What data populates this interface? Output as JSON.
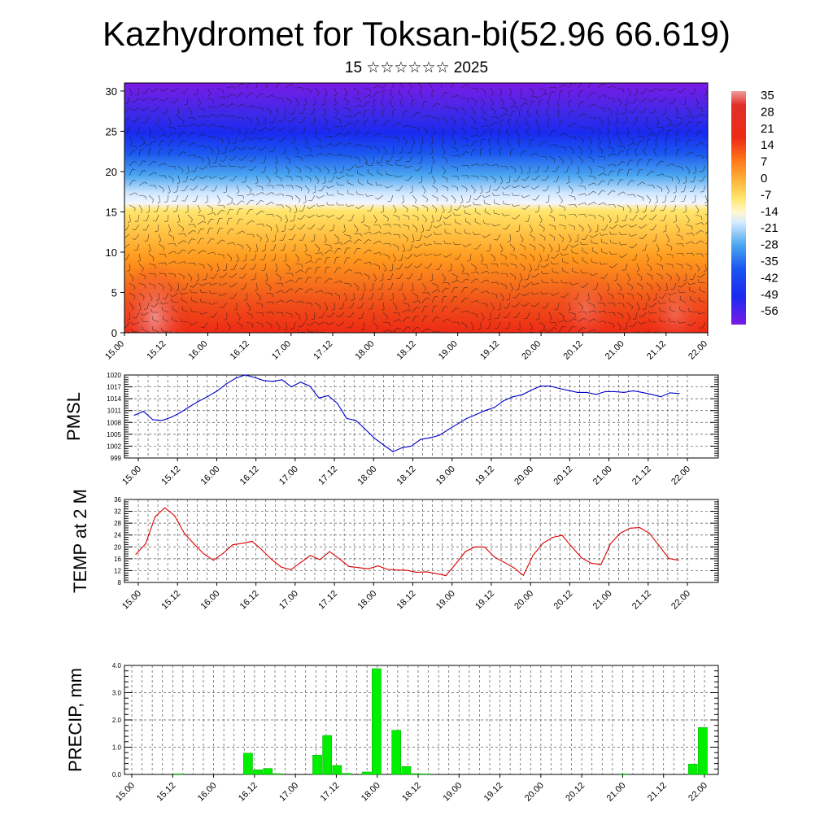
{
  "page": {
    "title": "Kazhydromet for Toksan-bi(52.96 66.619)",
    "subtitle": "15 ☆☆☆☆☆☆ 2025"
  },
  "chart_data": [
    {
      "type": "heatmap",
      "name": "cross-section",
      "x_tick_labels": [
        "15.00",
        "15.12",
        "16.00",
        "16.12",
        "17.00",
        "17.12",
        "18.00",
        "18.12",
        "19.00",
        "19.12",
        "20.00",
        "20.12",
        "21.00",
        "21.12",
        "22.00"
      ],
      "yticks": [
        0,
        5,
        10,
        15,
        20,
        25,
        30
      ],
      "ylim": [
        0,
        31
      ],
      "colorbar_labels": [
        "35",
        "28",
        "21",
        "14",
        "7",
        "0",
        "-7",
        "-14",
        "-21",
        "-28",
        "-35",
        "-42",
        "-49",
        "-56"
      ],
      "colors": {
        "top": "#7a1be6",
        "blue": "#1a2af0",
        "light_blue": "#4aa6f0",
        "pale": "#d8ecff",
        "yellow": "#ffe66e",
        "orange": "#ff9a1e",
        "red": "#ee2a14",
        "pink": "#f29a9a"
      }
    },
    {
      "type": "line",
      "name": "PMSL",
      "ylabel": "PMSL",
      "yticks": [
        999,
        1002,
        1005,
        1008,
        1011,
        1014,
        1017,
        1020
      ],
      "ylim": [
        999,
        1020
      ],
      "x_tick_labels": [
        "15.00",
        "15.12",
        "16.00",
        "16.12",
        "17.00",
        "17.12",
        "18.00",
        "18.12",
        "19.00",
        "19.12",
        "20.00",
        "20.12",
        "21.00",
        "21.12",
        "22.00"
      ],
      "color": "#0000cc",
      "values": [
        1009.8,
        1010.8,
        1008.7,
        1008.5,
        1009.3,
        1010.5,
        1012.0,
        1013.4,
        1014.6,
        1016.0,
        1017.8,
        1019.2,
        1020.0,
        1019.4,
        1018.6,
        1018.4,
        1018.8,
        1017.0,
        1018.2,
        1017.2,
        1014.2,
        1014.8,
        1012.8,
        1009.0,
        1008.5,
        1006.3,
        1004.0,
        1002.3,
        1000.6,
        1001.6,
        1002.0,
        1003.7,
        1004.1,
        1004.7,
        1006.2,
        1007.6,
        1009.0,
        1010.0,
        1011.0,
        1011.8,
        1013.5,
        1014.5,
        1015.0,
        1016.2,
        1017.2,
        1017.2,
        1016.6,
        1016.1,
        1015.6,
        1015.6,
        1015.1,
        1015.8,
        1015.8,
        1015.6,
        1016.0,
        1015.6,
        1015.1,
        1014.5,
        1015.5,
        1015.3
      ]
    },
    {
      "type": "line",
      "name": "TEMP at 2 M",
      "ylabel": "TEMP at 2 M",
      "yticks": [
        8,
        12,
        16,
        20,
        24,
        28,
        32,
        36
      ],
      "ylim": [
        8,
        36
      ],
      "x_tick_labels": [
        "15.00",
        "15.12",
        "16.00",
        "16.12",
        "17.00",
        "17.12",
        "18.00",
        "18.12",
        "19.00",
        "19.12",
        "20.00",
        "20.12",
        "21.00",
        "21.12",
        "22.00"
      ],
      "color": "#dd0000",
      "values": [
        17.5,
        21.0,
        30.2,
        33.2,
        30.5,
        24.6,
        21.0,
        17.7,
        15.5,
        17.8,
        20.7,
        21.2,
        21.9,
        19.0,
        15.8,
        13.2,
        12.3,
        14.7,
        17.1,
        15.7,
        18.4,
        16.0,
        13.4,
        13.0,
        12.6,
        13.6,
        12.4,
        12.2,
        12.1,
        11.4,
        11.6,
        11.0,
        10.3,
        14.2,
        18.4,
        20.0,
        19.9,
        16.6,
        14.8,
        13.0,
        10.4,
        17.2,
        21.2,
        23.2,
        23.9,
        20.0,
        16.3,
        14.5,
        14.0,
        21.1,
        24.6,
        26.3,
        26.5,
        24.6,
        20.4,
        16.1,
        15.5
      ]
    },
    {
      "type": "bar",
      "name": "PRECIP, mm",
      "ylabel": "PRECIP, mm",
      "yticks": [
        "0.0",
        "1.0",
        "2.0",
        "3.0",
        "4.0"
      ],
      "ylim": [
        0,
        4.0
      ],
      "x_tick_labels": [
        "15.00",
        "15.12",
        "16.00",
        "16.12",
        "17.00",
        "17.12",
        "18.00",
        "18.12",
        "19.00",
        "19.12",
        "20.00",
        "20.12",
        "21.00",
        "21.12",
        "22.00"
      ],
      "color": "#00ee00",
      "values": [
        0,
        0,
        0,
        0,
        0,
        0.02,
        0,
        0,
        0,
        0,
        0,
        0,
        0.78,
        0.17,
        0.22,
        0.03,
        0,
        0,
        0,
        0.71,
        1.43,
        0.33,
        0.04,
        0,
        0.09,
        3.88,
        0,
        1.62,
        0.29,
        0.03,
        0.02,
        0,
        0,
        0,
        0,
        0,
        0,
        0,
        0,
        0,
        0,
        0,
        0,
        0,
        0,
        0,
        0,
        0,
        0,
        0,
        0.02,
        0,
        0,
        0,
        0,
        0,
        0,
        0.38,
        1.72
      ]
    }
  ]
}
